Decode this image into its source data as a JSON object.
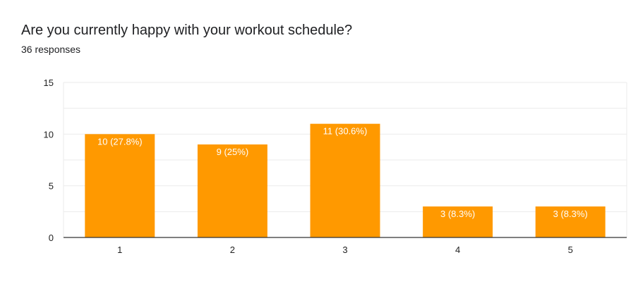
{
  "title": "Are you currently happy with your workout schedule?",
  "subtitle": "36 responses",
  "colors": {
    "bar": "#FF9900",
    "grid": "#EBEBEB",
    "axis": "#333333"
  },
  "chart_data": {
    "type": "bar",
    "title": "Are you currently happy with your workout schedule?",
    "categories": [
      "1",
      "2",
      "3",
      "4",
      "5"
    ],
    "values": [
      10,
      9,
      11,
      3,
      3
    ],
    "data_labels": [
      "10 (27.8%)",
      "9 (25%)",
      "11 (30.6%)",
      "3 (8.3%)",
      "3 (8.3%)"
    ],
    "ylim": [
      0,
      15
    ],
    "yticks": [
      0,
      5,
      10,
      15
    ],
    "grid": true,
    "xlabel": "",
    "ylabel": ""
  }
}
